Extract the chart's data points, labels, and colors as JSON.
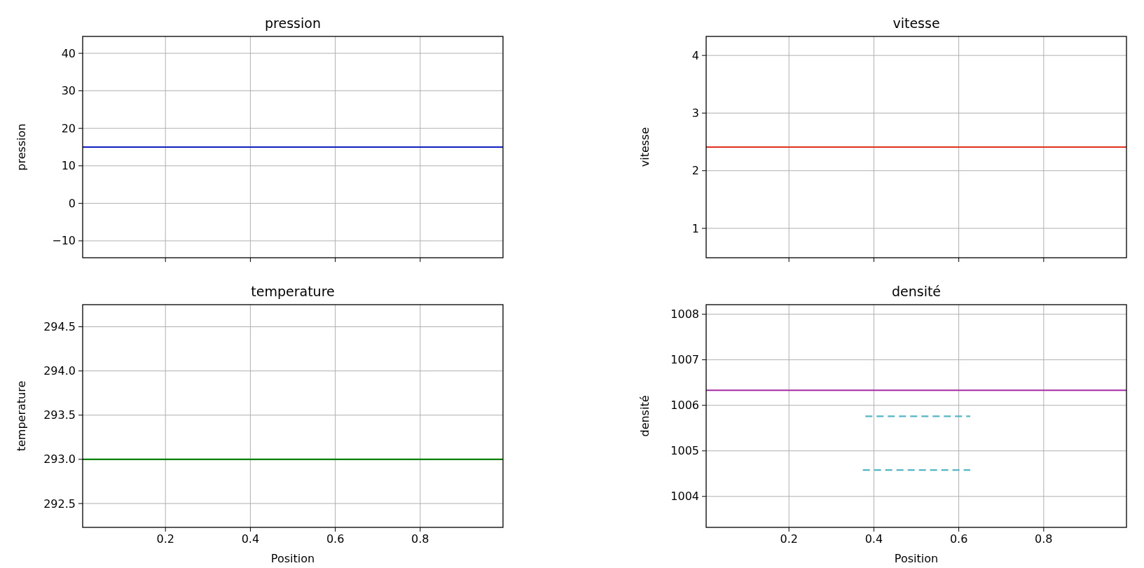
{
  "chart_data": [
    {
      "type": "line",
      "title": "pression",
      "ylabel": "pression",
      "xlim": [
        0.005,
        0.995
      ],
      "ylim": [
        -14.5,
        44.5
      ],
      "xticks": [
        {
          "value": 0.2,
          "label": null
        },
        {
          "value": 0.4,
          "label": null
        },
        {
          "value": 0.6,
          "label": null
        },
        {
          "value": 0.8,
          "label": null
        }
      ],
      "yticks": [
        {
          "value": -10,
          "label": "−10"
        },
        0,
        10,
        20,
        30,
        40
      ],
      "grid": true,
      "tick_labels": "y",
      "series": [
        {
          "color": "#1020c0",
          "x": [
            0.005,
            0.995
          ],
          "values": [
            15,
            15
          ]
        }
      ]
    },
    {
      "type": "line",
      "title": "vitesse",
      "ylabel": "vitesse",
      "xlim": [
        0.005,
        0.995
      ],
      "ylim": [
        0.49,
        4.33
      ],
      "xticks": [
        {
          "value": 0.2,
          "label": null
        },
        {
          "value": 0.4,
          "label": null
        },
        {
          "value": 0.6,
          "label": null
        },
        {
          "value": 0.8,
          "label": null
        }
      ],
      "yticks": [
        1,
        2,
        3,
        4
      ],
      "grid": true,
      "tick_labels": "y",
      "series": [
        {
          "color": "#e0301e",
          "x": [
            0.005,
            0.995
          ],
          "values": [
            2.41,
            2.41
          ]
        }
      ]
    },
    {
      "type": "line",
      "title": "temperature",
      "xlabel": "Position",
      "ylabel": "temperature",
      "xlim": [
        0.005,
        0.995
      ],
      "ylim": [
        292.23,
        294.75
      ],
      "xticks": [
        0.2,
        0.4,
        0.6,
        0.8
      ],
      "yticks": [
        292.5,
        {
          "value": 293,
          "label": "293.0"
        },
        293.5,
        {
          "value": 294,
          "label": "294.0"
        },
        294.5
      ],
      "grid": true,
      "series": [
        {
          "color": "#007f00",
          "x": [
            0.005,
            0.995
          ],
          "values": [
            293,
            293
          ]
        }
      ]
    },
    {
      "type": "line",
      "title": "densité",
      "xlabel": "Position",
      "ylabel": "densité",
      "xlim": [
        0.005,
        0.995
      ],
      "ylim": [
        1003.32,
        1008.21
      ],
      "xticks": [
        0.2,
        0.4,
        0.6,
        0.8
      ],
      "yticks": [
        1004,
        1005,
        1006,
        1007,
        1008
      ],
      "grid": true,
      "series": [
        {
          "color": "#a52aa5",
          "x": [
            0.005,
            0.995
          ],
          "values": [
            1006.33,
            1006.33
          ]
        },
        {
          "color": "#55b5c5",
          "line_style": "dashed",
          "x": [
            0.38,
            0.627
          ],
          "values": [
            1005.76,
            1005.76
          ]
        },
        {
          "color": "#55b5c5",
          "line_style": "dashed",
          "x": [
            0.374,
            0.627
          ],
          "values": [
            1004.58,
            1004.58
          ]
        }
      ]
    }
  ]
}
